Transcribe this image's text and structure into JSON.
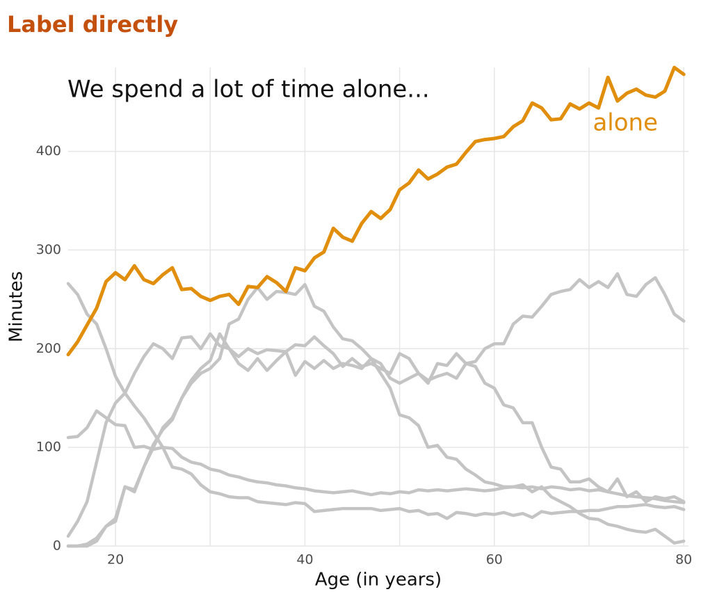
{
  "chart_data": {
    "type": "line",
    "title": "Label directly",
    "annotation": "We spend a lot of time alone...",
    "x_label": "Age (in years)",
    "y_label": "Minutes",
    "x": [
      15,
      16,
      17,
      18,
      19,
      20,
      21,
      22,
      23,
      24,
      25,
      26,
      27,
      28,
      29,
      30,
      31,
      32,
      33,
      34,
      35,
      36,
      37,
      38,
      39,
      40,
      41,
      42,
      43,
      44,
      45,
      46,
      47,
      48,
      49,
      50,
      51,
      52,
      53,
      54,
      55,
      56,
      57,
      58,
      59,
      60,
      61,
      62,
      63,
      64,
      65,
      66,
      67,
      68,
      69,
      70,
      71,
      72,
      73,
      74,
      75,
      76,
      77,
      78,
      79,
      80
    ],
    "series": [
      {
        "color": "#c4c4c4",
        "values": [
          266,
          255,
          235,
          225,
          200,
          172,
          155,
          142,
          130,
          115,
          100,
          99,
          90,
          85,
          83,
          78,
          76,
          72,
          70,
          67,
          65,
          64,
          62,
          61,
          59,
          58,
          56,
          55,
          54,
          55,
          56,
          54,
          52,
          54,
          53,
          55,
          54,
          57,
          56,
          57,
          56,
          57,
          58,
          57,
          56,
          57,
          59,
          60,
          59,
          60,
          58,
          60,
          59,
          57,
          58,
          56,
          57,
          55,
          53,
          51,
          50,
          49,
          48,
          46,
          45,
          44
        ]
      },
      {
        "color": "#c4c4c4",
        "values": [
          110,
          111,
          120,
          137,
          130,
          123,
          122,
          100,
          101,
          98,
          100,
          80,
          78,
          73,
          62,
          55,
          53,
          50,
          49,
          49,
          45,
          44,
          43,
          42,
          44,
          43,
          35,
          36,
          37,
          38,
          38,
          38,
          38,
          36,
          37,
          38,
          35,
          36,
          32,
          33,
          28,
          34,
          33,
          31,
          33,
          32,
          34,
          31,
          33,
          29,
          35,
          33,
          34,
          35,
          35,
          36,
          36,
          38,
          40,
          40,
          41,
          42,
          40,
          39,
          40,
          37
        ]
      },
      {
        "color": "#c4c4c4",
        "values": [
          10,
          25,
          45,
          85,
          125,
          145,
          155,
          175,
          192,
          205,
          200,
          190,
          211,
          212,
          200,
          215,
          203,
          200,
          192,
          200,
          195,
          199,
          198,
          197,
          204,
          203,
          212,
          203,
          195,
          182,
          190,
          182,
          185,
          180,
          175,
          195,
          190,
          175,
          168,
          172,
          175,
          170,
          185,
          182,
          165,
          160,
          143,
          140,
          125,
          125,
          100,
          80,
          78,
          65,
          65,
          68,
          60,
          55,
          68,
          50,
          55,
          45,
          50,
          48,
          50,
          45
        ]
      },
      {
        "color": "#c4c4c4",
        "values": [
          0,
          0,
          2,
          8,
          20,
          28,
          60,
          55,
          80,
          100,
          120,
          130,
          150,
          165,
          175,
          180,
          190,
          225,
          230,
          250,
          262,
          250,
          258,
          257,
          255,
          265,
          243,
          238,
          222,
          210,
          208,
          200,
          190,
          175,
          160,
          133,
          130,
          122,
          100,
          102,
          90,
          88,
          78,
          72,
          65,
          63,
          60,
          60,
          62,
          55,
          60,
          50,
          45,
          40,
          33,
          28,
          27,
          22,
          20,
          17,
          15,
          14,
          17,
          10,
          3,
          5
        ]
      },
      {
        "color": "#c4c4c4",
        "values": [
          0,
          0,
          0,
          5,
          20,
          25,
          60,
          57,
          80,
          103,
          118,
          128,
          150,
          168,
          180,
          188,
          215,
          200,
          185,
          178,
          190,
          178,
          188,
          197,
          173,
          187,
          180,
          188,
          180,
          185,
          183,
          180,
          190,
          185,
          170,
          165,
          170,
          175,
          165,
          185,
          183,
          195,
          185,
          187,
          200,
          205,
          205,
          225,
          233,
          232,
          243,
          255,
          258,
          260,
          270,
          262,
          268,
          262,
          276,
          255,
          253,
          265,
          272,
          255,
          235,
          228
        ]
      },
      {
        "name": "alone",
        "color": "#e08e0b",
        "values": [
          194,
          207,
          224,
          241,
          268,
          277,
          270,
          284,
          270,
          266,
          275,
          282,
          260,
          261,
          253,
          249,
          253,
          255,
          245,
          263,
          262,
          273,
          267,
          258,
          282,
          279,
          292,
          298,
          322,
          313,
          309,
          327,
          339,
          332,
          341,
          361,
          368,
          381,
          372,
          377,
          384,
          387,
          399,
          410,
          412,
          413,
          415,
          425,
          431,
          449,
          444,
          432,
          433,
          448,
          443,
          449,
          444,
          475,
          451,
          459,
          463,
          457,
          455,
          461,
          485,
          478
        ]
      }
    ],
    "xlim": [
      15,
      80.5
    ],
    "ylim": [
      0,
      485
    ],
    "xticks": [
      20,
      40,
      60,
      80
    ],
    "yticks": [
      0,
      100,
      200,
      300,
      400
    ],
    "x_minor_grid": [
      30,
      50,
      70
    ],
    "grid": true
  }
}
